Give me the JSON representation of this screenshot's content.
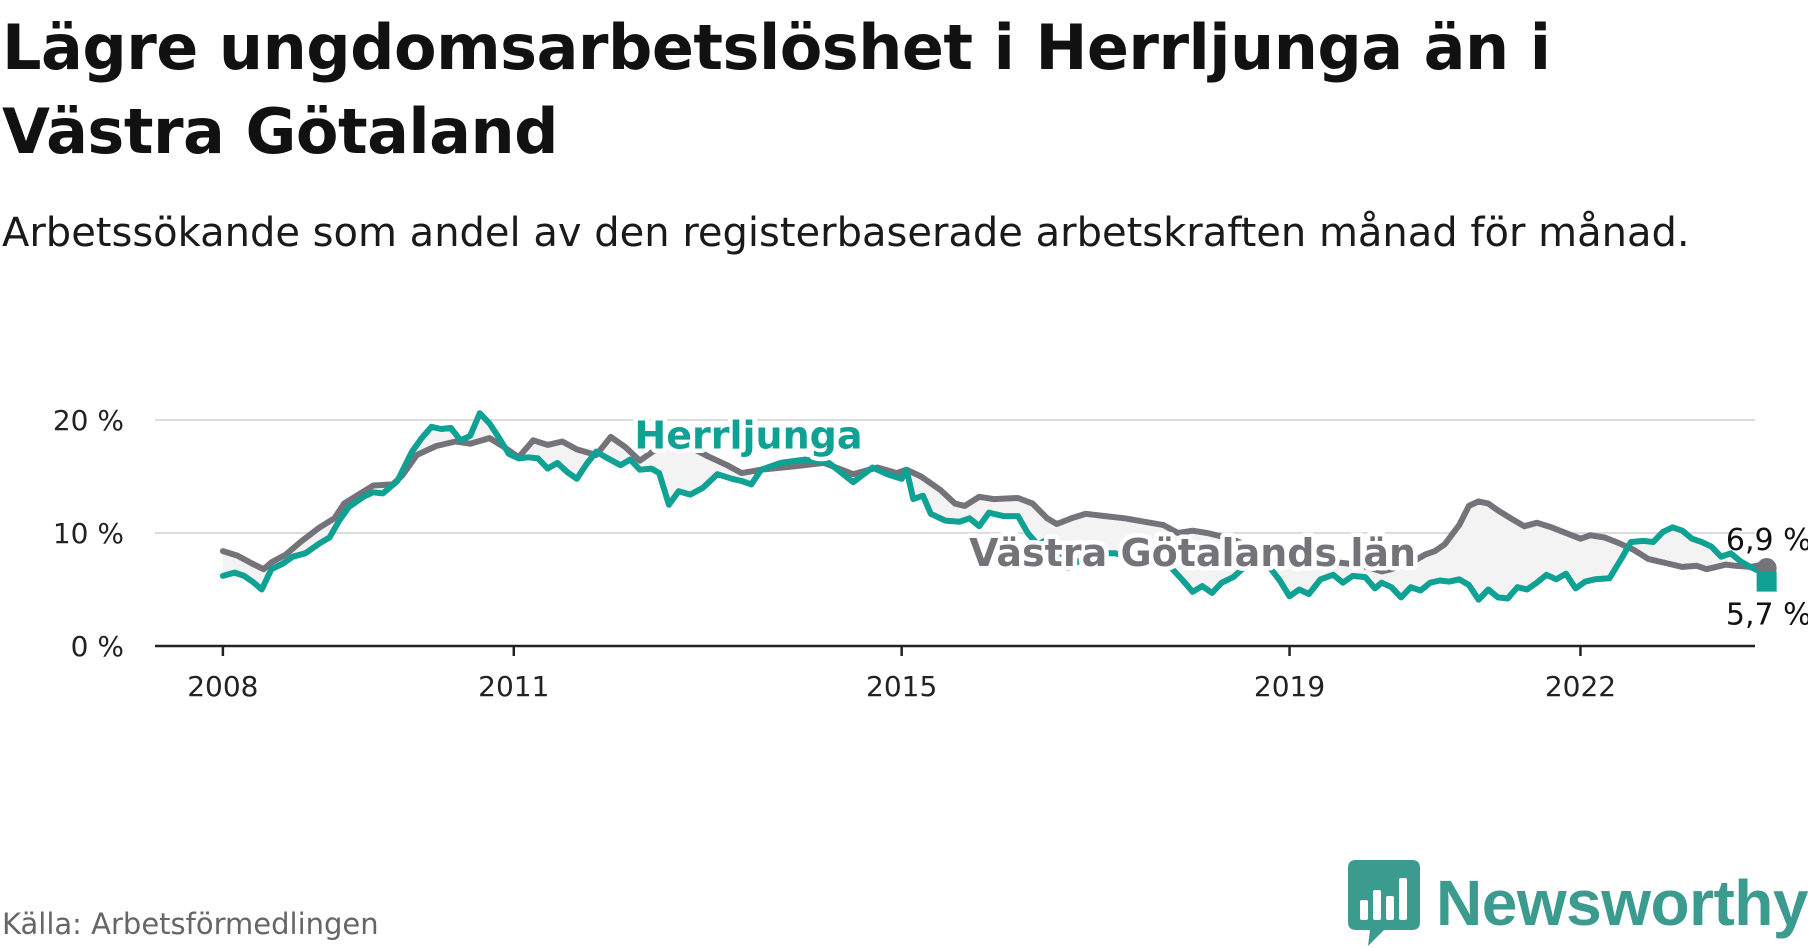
{
  "title": "Lägre ungdomsarbetslöshet i Herrljunga än i Västra Götaland",
  "subtitle": "Arbetssökande som andel av den registerbaserade arbetskraften månad för månad.",
  "source": "Källa: Arbetsförmedlingen",
  "brand": {
    "name": "Newsworthy",
    "logo_icon": "bar-chart-speech-bubble-icon",
    "color": "#3b9b8f"
  },
  "chart_data": {
    "type": "line",
    "title": "Lägre ungdomsarbetslöshet i Herrljunga än i Västra Götaland",
    "xlabel": "",
    "ylabel": "",
    "ylim": [
      0,
      20
    ],
    "xlim": [
      2007.3,
      2023.8
    ],
    "x_ticks": [
      2008,
      2011,
      2015,
      2019,
      2022
    ],
    "x_tick_labels": [
      "2008",
      "2011",
      "2015",
      "2019",
      "2022"
    ],
    "y_ticks": [
      0,
      10,
      20
    ],
    "y_tick_labels": [
      "0 %",
      "10 %",
      "20 %"
    ],
    "grid": true,
    "series": [
      {
        "name": "Västra Götalands län",
        "label": "Västra Götalands län",
        "color": "#75737a",
        "end_label": "6,9 %",
        "points": [
          [
            2008.0,
            8.4
          ],
          [
            2008.15,
            8.0
          ],
          [
            2008.3,
            7.3
          ],
          [
            2008.42,
            6.8
          ],
          [
            2008.5,
            7.4
          ],
          [
            2008.65,
            8.1
          ],
          [
            2008.8,
            9.2
          ],
          [
            2009.0,
            10.5
          ],
          [
            2009.15,
            11.3
          ],
          [
            2009.25,
            12.6
          ],
          [
            2009.4,
            13.4
          ],
          [
            2009.55,
            14.2
          ],
          [
            2009.75,
            14.3
          ],
          [
            2009.85,
            15.1
          ],
          [
            2010.0,
            16.9
          ],
          [
            2010.2,
            17.7
          ],
          [
            2010.4,
            18.1
          ],
          [
            2010.55,
            17.9
          ],
          [
            2010.75,
            18.4
          ],
          [
            2010.9,
            17.6
          ],
          [
            2011.05,
            16.7
          ],
          [
            2011.2,
            18.2
          ],
          [
            2011.35,
            17.8
          ],
          [
            2011.5,
            18.1
          ],
          [
            2011.65,
            17.4
          ],
          [
            2011.85,
            16.9
          ],
          [
            2012.0,
            18.5
          ],
          [
            2012.15,
            17.6
          ],
          [
            2012.3,
            16.4
          ],
          [
            2012.5,
            17.6
          ],
          [
            2012.65,
            18.0
          ],
          [
            2012.75,
            17.9
          ],
          [
            2013.0,
            16.8
          ],
          [
            2013.2,
            16.0
          ],
          [
            2013.35,
            15.3
          ],
          [
            2013.55,
            15.6
          ],
          [
            2013.9,
            15.9
          ],
          [
            2014.2,
            16.2
          ],
          [
            2014.5,
            15.2
          ],
          [
            2014.75,
            15.8
          ],
          [
            2014.95,
            15.3
          ],
          [
            2015.05,
            15.6
          ],
          [
            2015.2,
            15.0
          ],
          [
            2015.4,
            13.8
          ],
          [
            2015.55,
            12.6
          ],
          [
            2015.65,
            12.4
          ],
          [
            2015.8,
            13.2
          ],
          [
            2015.95,
            13.0
          ],
          [
            2016.2,
            13.1
          ],
          [
            2016.35,
            12.6
          ],
          [
            2016.5,
            11.3
          ],
          [
            2016.6,
            10.8
          ],
          [
            2016.75,
            11.3
          ],
          [
            2016.9,
            11.7
          ],
          [
            2017.1,
            11.5
          ],
          [
            2017.3,
            11.3
          ],
          [
            2017.5,
            11.0
          ],
          [
            2017.7,
            10.7
          ],
          [
            2017.85,
            10.0
          ],
          [
            2018.0,
            10.2
          ],
          [
            2018.15,
            10.0
          ],
          [
            2018.3,
            9.7
          ],
          [
            2018.45,
            9.3
          ],
          [
            2018.6,
            8.8
          ],
          [
            2018.8,
            8.4
          ],
          [
            2019.0,
            8.1
          ],
          [
            2019.2,
            7.8
          ],
          [
            2019.4,
            7.5
          ],
          [
            2019.6,
            7.3
          ],
          [
            2019.8,
            7.0
          ],
          [
            2019.95,
            6.6
          ],
          [
            2020.05,
            6.8
          ],
          [
            2020.15,
            7.2
          ],
          [
            2020.3,
            7.6
          ],
          [
            2020.4,
            8.1
          ],
          [
            2020.5,
            8.4
          ],
          [
            2020.6,
            9.0
          ],
          [
            2020.75,
            10.7
          ],
          [
            2020.85,
            12.4
          ],
          [
            2020.95,
            12.8
          ],
          [
            2021.05,
            12.6
          ],
          [
            2021.15,
            12.0
          ],
          [
            2021.3,
            11.2
          ],
          [
            2021.42,
            10.6
          ],
          [
            2021.55,
            10.9
          ],
          [
            2021.7,
            10.5
          ],
          [
            2021.85,
            10.0
          ],
          [
            2022.0,
            9.5
          ],
          [
            2022.1,
            9.8
          ],
          [
            2022.25,
            9.6
          ],
          [
            2022.4,
            9.1
          ],
          [
            2022.55,
            8.5
          ],
          [
            2022.7,
            7.7
          ],
          [
            2022.9,
            7.3
          ],
          [
            2023.05,
            7.0
          ],
          [
            2023.2,
            7.1
          ],
          [
            2023.3,
            6.8
          ],
          [
            2023.4,
            7.0
          ],
          [
            2023.5,
            7.2
          ],
          [
            2023.6,
            7.1
          ],
          [
            2023.75,
            7.0
          ],
          [
            2023.88,
            7.2
          ],
          [
            2023.92,
            6.9
          ]
        ]
      },
      {
        "name": "Herrljunga",
        "label": "Herrljunga",
        "color": "#0fa194",
        "end_label": "5,7 %",
        "points": [
          [
            2008.0,
            6.2
          ],
          [
            2008.12,
            6.5
          ],
          [
            2008.22,
            6.2
          ],
          [
            2008.32,
            5.6
          ],
          [
            2008.4,
            5.0
          ],
          [
            2008.5,
            6.8
          ],
          [
            2008.62,
            7.3
          ],
          [
            2008.72,
            7.9
          ],
          [
            2008.85,
            8.2
          ],
          [
            2009.0,
            9.1
          ],
          [
            2009.1,
            9.6
          ],
          [
            2009.2,
            11.1
          ],
          [
            2009.3,
            12.3
          ],
          [
            2009.45,
            13.2
          ],
          [
            2009.55,
            13.6
          ],
          [
            2009.65,
            13.5
          ],
          [
            2009.8,
            14.6
          ],
          [
            2009.95,
            17.2
          ],
          [
            2010.05,
            18.4
          ],
          [
            2010.15,
            19.4
          ],
          [
            2010.25,
            19.2
          ],
          [
            2010.35,
            19.3
          ],
          [
            2010.45,
            18.2
          ],
          [
            2010.55,
            18.6
          ],
          [
            2010.65,
            20.6
          ],
          [
            2010.75,
            19.7
          ],
          [
            2010.85,
            18.4
          ],
          [
            2010.95,
            17.0
          ],
          [
            2011.05,
            16.6
          ],
          [
            2011.15,
            16.7
          ],
          [
            2011.25,
            16.6
          ],
          [
            2011.35,
            15.7
          ],
          [
            2011.45,
            16.2
          ],
          [
            2011.55,
            15.4
          ],
          [
            2011.65,
            14.8
          ],
          [
            2011.75,
            16.1
          ],
          [
            2011.85,
            17.2
          ],
          [
            2011.95,
            16.7
          ],
          [
            2012.1,
            16.0
          ],
          [
            2012.2,
            16.5
          ],
          [
            2012.3,
            15.6
          ],
          [
            2012.42,
            15.7
          ],
          [
            2012.5,
            15.3
          ],
          [
            2012.6,
            12.5
          ],
          [
            2012.7,
            13.7
          ],
          [
            2012.82,
            13.4
          ],
          [
            2012.95,
            14.0
          ],
          [
            2013.1,
            15.2
          ],
          [
            2013.25,
            14.8
          ],
          [
            2013.35,
            14.6
          ],
          [
            2013.45,
            14.3
          ],
          [
            2013.55,
            15.6
          ],
          [
            2013.75,
            16.2
          ],
          [
            2014.0,
            16.5
          ],
          [
            2014.25,
            16.2
          ],
          [
            2014.5,
            14.5
          ],
          [
            2014.7,
            15.8
          ],
          [
            2014.85,
            15.2
          ],
          [
            2015.0,
            14.8
          ],
          [
            2015.05,
            15.6
          ],
          [
            2015.12,
            13.0
          ],
          [
            2015.22,
            13.3
          ],
          [
            2015.3,
            11.7
          ],
          [
            2015.45,
            11.1
          ],
          [
            2015.6,
            11.0
          ],
          [
            2015.7,
            11.3
          ],
          [
            2015.8,
            10.6
          ],
          [
            2015.9,
            11.8
          ],
          [
            2016.05,
            11.5
          ],
          [
            2016.2,
            11.5
          ],
          [
            2016.3,
            10.0
          ],
          [
            2016.4,
            9.0
          ],
          [
            2016.5,
            9.4
          ],
          [
            2016.6,
            8.1
          ],
          [
            2016.72,
            6.9
          ],
          [
            2016.82,
            7.5
          ],
          [
            2016.92,
            7.6
          ],
          [
            2017.05,
            8.2
          ],
          [
            2017.2,
            8.2
          ],
          [
            2017.35,
            7.9
          ],
          [
            2017.55,
            7.6
          ],
          [
            2017.75,
            7.2
          ],
          [
            2017.9,
            5.8
          ],
          [
            2018.0,
            4.8
          ],
          [
            2018.1,
            5.3
          ],
          [
            2018.2,
            4.7
          ],
          [
            2018.3,
            5.6
          ],
          [
            2018.42,
            6.1
          ],
          [
            2018.55,
            7.1
          ],
          [
            2018.68,
            7.7
          ],
          [
            2018.8,
            6.9
          ],
          [
            2018.9,
            5.8
          ],
          [
            2019.0,
            4.4
          ],
          [
            2019.1,
            5.0
          ],
          [
            2019.2,
            4.6
          ],
          [
            2019.32,
            5.9
          ],
          [
            2019.45,
            6.3
          ],
          [
            2019.55,
            5.6
          ],
          [
            2019.65,
            6.2
          ],
          [
            2019.78,
            6.1
          ],
          [
            2019.88,
            5.1
          ],
          [
            2019.95,
            5.6
          ],
          [
            2020.05,
            5.2
          ],
          [
            2020.15,
            4.3
          ],
          [
            2020.25,
            5.2
          ],
          [
            2020.35,
            4.9
          ],
          [
            2020.45,
            5.6
          ],
          [
            2020.55,
            5.8
          ],
          [
            2020.65,
            5.7
          ],
          [
            2020.75,
            5.9
          ],
          [
            2020.85,
            5.4
          ],
          [
            2020.95,
            4.1
          ],
          [
            2021.05,
            5.0
          ],
          [
            2021.15,
            4.3
          ],
          [
            2021.25,
            4.2
          ],
          [
            2021.35,
            5.2
          ],
          [
            2021.45,
            5.0
          ],
          [
            2021.55,
            5.6
          ],
          [
            2021.65,
            6.3
          ],
          [
            2021.75,
            5.9
          ],
          [
            2021.85,
            6.4
          ],
          [
            2021.95,
            5.1
          ],
          [
            2022.05,
            5.7
          ],
          [
            2022.15,
            5.9
          ],
          [
            2022.3,
            6.0
          ],
          [
            2022.42,
            7.7
          ],
          [
            2022.52,
            9.2
          ],
          [
            2022.65,
            9.3
          ],
          [
            2022.75,
            9.2
          ],
          [
            2022.85,
            10.1
          ],
          [
            2022.95,
            10.5
          ],
          [
            2023.05,
            10.2
          ],
          [
            2023.15,
            9.5
          ],
          [
            2023.25,
            9.2
          ],
          [
            2023.35,
            8.8
          ],
          [
            2023.45,
            7.9
          ],
          [
            2023.55,
            8.2
          ],
          [
            2023.65,
            7.5
          ],
          [
            2023.75,
            7.0
          ],
          [
            2023.85,
            6.6
          ],
          [
            2023.92,
            5.7
          ]
        ]
      }
    ]
  }
}
